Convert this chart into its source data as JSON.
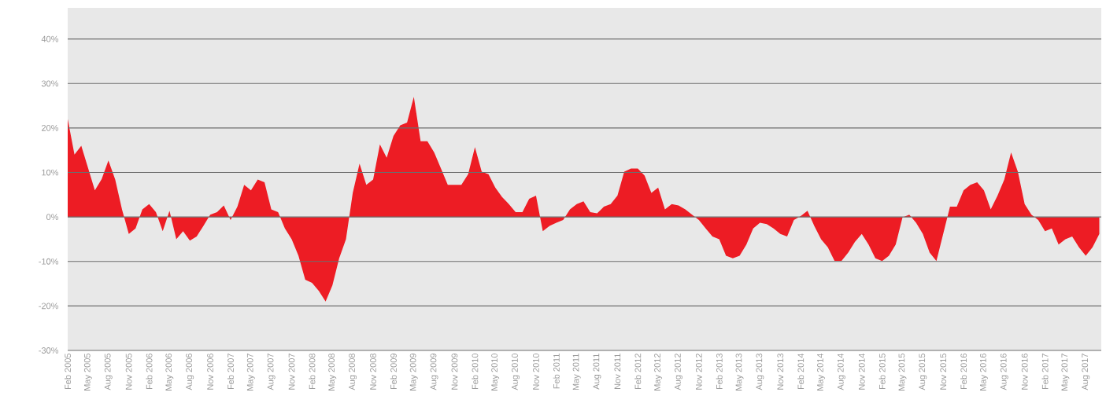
{
  "chart_data": {
    "type": "area",
    "ylim": [
      -30,
      47
    ],
    "yticks": [
      {
        "value": -30,
        "label": "-30%"
      },
      {
        "value": -20,
        "label": "-20%"
      },
      {
        "value": -10,
        "label": "-10%"
      },
      {
        "value": 0,
        "label": "0%"
      },
      {
        "value": 10,
        "label": "10%"
      },
      {
        "value": 20,
        "label": "20%"
      },
      {
        "value": 30,
        "label": "30%"
      },
      {
        "value": 40,
        "label": "40%"
      }
    ],
    "xlim": [
      "2005-02",
      "2017-10-10"
    ],
    "xticks": [
      {
        "value": "2005-02",
        "label": "Feb 2005"
      },
      {
        "value": "2005-05",
        "label": "May 2005"
      },
      {
        "value": "2005-08",
        "label": "Aug 2005"
      },
      {
        "value": "2005-11",
        "label": "Nov 2005"
      },
      {
        "value": "2006-02",
        "label": "Feb 2006"
      },
      {
        "value": "2006-05",
        "label": "May 2006"
      },
      {
        "value": "2006-08",
        "label": "Aug 2006"
      },
      {
        "value": "2006-11",
        "label": "Nov 2006"
      },
      {
        "value": "2007-02",
        "label": "Feb 2007"
      },
      {
        "value": "2007-05",
        "label": "May 2007"
      },
      {
        "value": "2007-08",
        "label": "Aug 2007"
      },
      {
        "value": "2007-11",
        "label": "Nov 2007"
      },
      {
        "value": "2008-02",
        "label": "Feb 2008"
      },
      {
        "value": "2008-05",
        "label": "May 2008"
      },
      {
        "value": "2008-08",
        "label": "Aug 2008"
      },
      {
        "value": "2008-11",
        "label": "Nov 2008"
      },
      {
        "value": "2009-02",
        "label": "Feb 2009"
      },
      {
        "value": "2009-05",
        "label": "May 2009"
      },
      {
        "value": "2009-08",
        "label": "Aug 2009"
      },
      {
        "value": "2009-11",
        "label": "Nov 2009"
      },
      {
        "value": "2010-02",
        "label": "Feb 2010"
      },
      {
        "value": "2010-05",
        "label": "May 2010"
      },
      {
        "value": "2010-08",
        "label": "Aug 2010"
      },
      {
        "value": "2010-11",
        "label": "Nov 2010"
      },
      {
        "value": "2011-02",
        "label": "Feb 2011"
      },
      {
        "value": "2011-05",
        "label": "May 2011"
      },
      {
        "value": "2011-08",
        "label": "Aug 2011"
      },
      {
        "value": "2011-11",
        "label": "Nov 2011"
      },
      {
        "value": "2012-02",
        "label": "Feb 2012"
      },
      {
        "value": "2012-05",
        "label": "May 2012"
      },
      {
        "value": "2012-08",
        "label": "Aug 2012"
      },
      {
        "value": "2012-11",
        "label": "Nov 2012"
      },
      {
        "value": "2013-02",
        "label": "Feb 2013"
      },
      {
        "value": "2013-05",
        "label": "May 2013"
      },
      {
        "value": "2013-08",
        "label": "Aug 2013"
      },
      {
        "value": "2013-11",
        "label": "Nov 2013"
      },
      {
        "value": "2014-02",
        "label": "Feb 2014"
      },
      {
        "value": "2014-05",
        "label": "May 2014"
      },
      {
        "value": "2014-08",
        "label": "Aug 2014"
      },
      {
        "value": "2014-11",
        "label": "Nov 2014"
      },
      {
        "value": "2015-02",
        "label": "Feb 2015"
      },
      {
        "value": "2015-05",
        "label": "May 2015"
      },
      {
        "value": "2015-08",
        "label": "Aug 2015"
      },
      {
        "value": "2015-11",
        "label": "Nov 2015"
      },
      {
        "value": "2016-02",
        "label": "Feb 2016"
      },
      {
        "value": "2016-05",
        "label": "May 2016"
      },
      {
        "value": "2016-08",
        "label": "Aug 2016"
      },
      {
        "value": "2016-11",
        "label": "Nov 2016"
      },
      {
        "value": "2017-02",
        "label": "Feb 2017"
      },
      {
        "value": "2017-05",
        "label": "May 2017"
      },
      {
        "value": "2017-08",
        "label": "Aug 2017"
      }
    ],
    "grid": "y",
    "x": [
      "2005-02",
      "2005-03",
      "2005-04",
      "2005-05",
      "2005-06",
      "2005-07",
      "2005-08",
      "2005-09",
      "2005-10",
      "2005-11",
      "2005-12",
      "2006-01",
      "2006-02",
      "2006-03",
      "2006-04",
      "2006-05",
      "2006-06",
      "2006-07",
      "2006-08",
      "2006-09",
      "2006-10",
      "2006-11",
      "2006-12",
      "2007-01",
      "2007-02",
      "2007-03",
      "2007-04",
      "2007-05",
      "2007-06",
      "2007-07",
      "2007-08",
      "2007-09",
      "2007-10",
      "2007-11",
      "2007-12",
      "2008-01",
      "2008-02",
      "2008-03",
      "2008-04",
      "2008-05",
      "2008-06",
      "2008-07",
      "2008-08",
      "2008-09",
      "2008-10",
      "2008-11",
      "2008-12",
      "2009-01",
      "2009-02",
      "2009-03",
      "2009-04",
      "2009-05",
      "2009-06",
      "2009-07",
      "2009-08",
      "2009-09",
      "2009-10",
      "2009-11",
      "2009-12",
      "2010-01",
      "2010-02",
      "2010-03",
      "2010-04",
      "2010-05",
      "2010-06",
      "2010-07",
      "2010-08",
      "2010-09",
      "2010-10",
      "2010-11",
      "2010-12",
      "2011-01",
      "2011-02",
      "2011-03",
      "2011-04",
      "2011-05",
      "2011-06",
      "2011-07",
      "2011-08",
      "2011-09",
      "2011-10",
      "2011-11",
      "2011-12",
      "2012-01",
      "2012-02",
      "2012-03",
      "2012-04",
      "2012-05",
      "2012-06",
      "2012-07",
      "2012-08",
      "2012-09",
      "2012-10",
      "2012-11",
      "2012-12",
      "2013-01",
      "2013-02",
      "2013-03",
      "2013-04",
      "2013-05",
      "2013-06",
      "2013-07",
      "2013-08",
      "2013-09",
      "2013-10",
      "2013-11",
      "2013-12",
      "2014-01",
      "2014-02",
      "2014-03",
      "2014-04",
      "2014-05",
      "2014-06",
      "2014-07",
      "2014-08",
      "2014-09",
      "2014-10",
      "2014-11",
      "2014-12",
      "2015-01",
      "2015-02",
      "2015-03",
      "2015-04",
      "2015-05",
      "2015-06",
      "2015-07",
      "2015-08",
      "2015-09",
      "2015-10",
      "2015-11",
      "2015-12",
      "2016-01",
      "2016-02",
      "2016-03",
      "2016-04",
      "2016-05",
      "2016-06",
      "2016-07",
      "2016-08",
      "2016-09",
      "2016-10",
      "2016-11",
      "2016-12",
      "2017-01",
      "2017-02",
      "2017-03",
      "2017-04",
      "2017-05",
      "2017-06",
      "2017-07",
      "2017-08",
      "2017-09",
      "2017-10"
    ],
    "series": [
      {
        "color": "#ed1c24",
        "values": [
          22,
          14,
          16,
          11,
          6,
          8.5,
          12.7,
          8.4,
          1.7,
          -3.8,
          -2.6,
          1.7,
          2.9,
          1.1,
          -3.2,
          1.4,
          -5,
          -3.2,
          -5.3,
          -4.4,
          -2,
          0.5,
          1.1,
          2.6,
          -0.7,
          2.3,
          7.2,
          6,
          8.4,
          7.8,
          1.7,
          1.1,
          -2.6,
          -5,
          -8.7,
          -14.1,
          -14.8,
          -16.6,
          -19,
          -15.4,
          -9.3,
          -5,
          5.4,
          12,
          7.2,
          8.4,
          16.3,
          13.3,
          18.2,
          20.6,
          21.2,
          27,
          17,
          17,
          14.5,
          10.9,
          7.2,
          7.2,
          7.2,
          9.6,
          15.7,
          10.2,
          9.6,
          6.6,
          4.5,
          2.9,
          1.1,
          1.1,
          4.1,
          4.8,
          -3.2,
          -2,
          -1.3,
          -0.7,
          1.7,
          2.9,
          3.5,
          1.1,
          0.8,
          2.3,
          2.9,
          4.8,
          10.2,
          10.9,
          10.9,
          9.3,
          5.4,
          6.6,
          1.7,
          2.9,
          2.6,
          1.7,
          0.5,
          -0.7,
          -2.6,
          -4.4,
          -5,
          -8.7,
          -9.3,
          -8.7,
          -6.2,
          -2.6,
          -1.3,
          -1.6,
          -2.6,
          -3.8,
          -4.4,
          -0.7,
          0.2,
          1.4,
          -2,
          -5,
          -6.8,
          -9.9,
          -9.9,
          -8,
          -5.6,
          -3.8,
          -6.2,
          -9.3,
          -9.9,
          -8.7,
          -6.2,
          -0.1,
          0.5,
          -1.3,
          -3.8,
          -8,
          -9.9,
          -3.8,
          2.3,
          2.3,
          6,
          7.2,
          7.8,
          6,
          1.7,
          4.8,
          8.4,
          14.5,
          10.2,
          2.9,
          0.5,
          -0.7,
          -3.2,
          -2.6,
          -6.2,
          -5,
          -4.4,
          -6.8,
          -8.7,
          -6.8,
          -3.8
        ]
      }
    ]
  }
}
